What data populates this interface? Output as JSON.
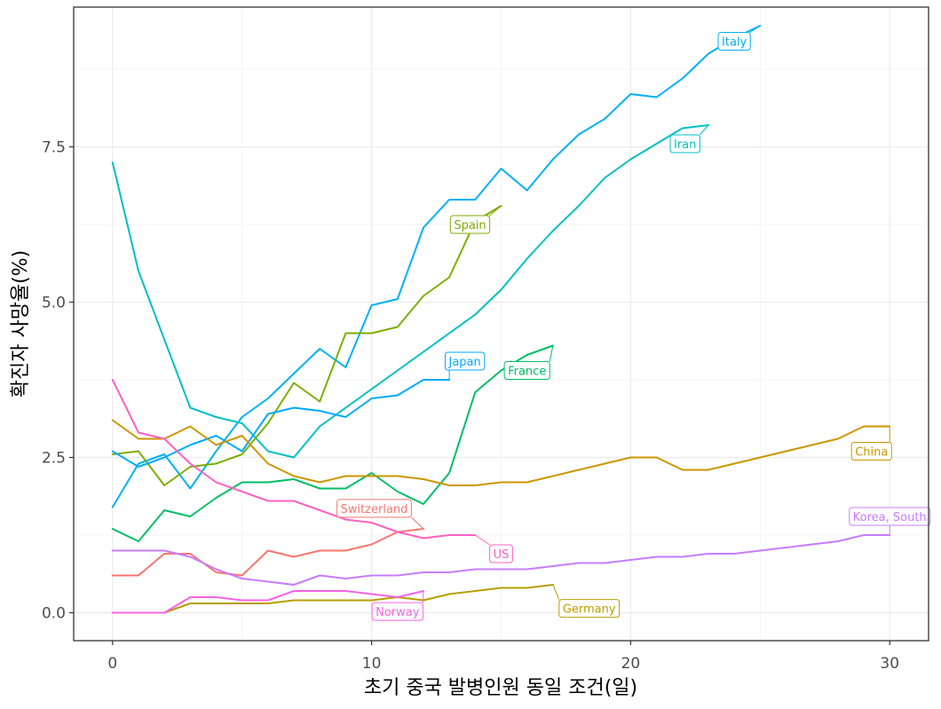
{
  "chart_data": {
    "type": "line",
    "title": "",
    "xlabel": "초기 중국 발병인원 동일 조건(일)",
    "ylabel": "확진자 사망율(%)",
    "xlim": [
      -1.5,
      31.5
    ],
    "ylim": [
      -0.45,
      9.75
    ],
    "x_ticks": [
      0,
      10,
      20,
      30
    ],
    "x_tick_labels": [
      "0",
      "10",
      "20",
      "30"
    ],
    "y_ticks": [
      0,
      2.5,
      5,
      7.5
    ],
    "y_tick_labels": [
      "0.0",
      "2.5",
      "5.0",
      "7.5"
    ],
    "grid": true,
    "legend": "none",
    "series": [
      {
        "name": "Italy",
        "color": "#00b0f6",
        "x": [
          0,
          1,
          2,
          3,
          4,
          5,
          6,
          7,
          8,
          9,
          10,
          11,
          12,
          13,
          14,
          15,
          16,
          17,
          18,
          19,
          20,
          21,
          22,
          23,
          24,
          25
        ],
        "y": [
          1.7,
          2.4,
          2.55,
          2.0,
          2.6,
          3.15,
          3.45,
          3.85,
          4.25,
          3.95,
          4.95,
          5.05,
          6.2,
          6.65,
          6.65,
          7.15,
          6.8,
          7.3,
          7.7,
          7.95,
          8.35,
          8.3,
          8.6,
          9.0,
          9.25,
          9.45
        ],
        "label_x": 24.0,
        "label_y": 9.2
      },
      {
        "name": "Iran",
        "color": "#00bfc4",
        "x": [
          0,
          1,
          2,
          3,
          4,
          5,
          6,
          7,
          8,
          9,
          10,
          11,
          12,
          13,
          14,
          15,
          16,
          17,
          18,
          19,
          20,
          21,
          22,
          23
        ],
        "y": [
          7.25,
          5.5,
          4.4,
          3.3,
          3.15,
          3.05,
          2.6,
          2.5,
          3.0,
          3.3,
          3.6,
          3.9,
          4.2,
          4.5,
          4.8,
          5.2,
          5.7,
          6.15,
          6.55,
          7.0,
          7.3,
          7.55,
          7.8,
          7.85
        ],
        "label_x": 22.1,
        "label_y": 7.55
      },
      {
        "name": "Spain",
        "color": "#7cae00",
        "x": [
          0,
          1,
          2,
          3,
          4,
          5,
          6,
          7,
          8,
          9,
          10,
          11,
          12,
          13,
          14,
          15
        ],
        "y": [
          2.55,
          2.6,
          2.05,
          2.35,
          2.4,
          2.55,
          3.05,
          3.7,
          3.4,
          4.5,
          4.5,
          4.6,
          5.1,
          5.4,
          6.3,
          6.55
        ],
        "label_x": 13.8,
        "label_y": 6.25
      },
      {
        "name": "Japan",
        "color": "#00a9ff",
        "x": [
          0,
          1,
          2,
          3,
          4,
          5,
          6,
          7,
          8,
          9,
          10,
          11,
          12,
          13
        ],
        "y": [
          2.6,
          2.35,
          2.5,
          2.7,
          2.85,
          2.6,
          3.2,
          3.3,
          3.25,
          3.15,
          3.45,
          3.5,
          3.75,
          3.75
        ],
        "label_x": 13.6,
        "label_y": 4.05
      },
      {
        "name": "France",
        "color": "#00be67",
        "x": [
          0,
          1,
          2,
          3,
          4,
          5,
          6,
          7,
          8,
          9,
          10,
          11,
          12,
          13,
          14,
          15,
          16,
          17
        ],
        "y": [
          1.35,
          1.15,
          1.65,
          1.55,
          1.85,
          2.1,
          2.1,
          2.15,
          2.0,
          2.0,
          2.25,
          1.95,
          1.75,
          2.25,
          3.55,
          3.9,
          4.15,
          4.3
        ],
        "label_x": 16.0,
        "label_y": 3.9
      },
      {
        "name": "China",
        "color": "#cd9600",
        "x": [
          0,
          1,
          2,
          3,
          4,
          5,
          6,
          7,
          8,
          9,
          10,
          11,
          12,
          13,
          14,
          15,
          16,
          17,
          18,
          19,
          20,
          21,
          22,
          23,
          24,
          25,
          26,
          27,
          28,
          29,
          30
        ],
        "y": [
          3.1,
          2.8,
          2.8,
          3.0,
          2.7,
          2.85,
          2.4,
          2.2,
          2.1,
          2.2,
          2.2,
          2.2,
          2.15,
          2.05,
          2.05,
          2.1,
          2.1,
          2.2,
          2.3,
          2.4,
          2.5,
          2.5,
          2.3,
          2.3,
          2.4,
          2.5,
          2.6,
          2.7,
          2.8,
          3.0,
          3.0
        ],
        "label_x": 29.3,
        "label_y": 2.6
      },
      {
        "name": "Switzerland",
        "color": "#f8766d",
        "x": [
          0,
          1,
          2,
          3,
          4,
          5,
          6,
          7,
          8,
          9,
          10,
          11,
          12
        ],
        "y": [
          0.6,
          0.6,
          0.95,
          0.95,
          0.65,
          0.6,
          1.0,
          0.9,
          1.0,
          1.0,
          1.1,
          1.3,
          1.35
        ],
        "label_x": 10.1,
        "label_y": 1.68
      },
      {
        "name": "US",
        "color": "#ff61c3",
        "x": [
          0,
          1,
          2,
          3,
          4,
          5,
          6,
          7,
          8,
          9,
          10,
          11,
          12,
          13,
          14
        ],
        "y": [
          3.75,
          2.9,
          2.8,
          2.4,
          2.1,
          1.95,
          1.8,
          1.8,
          1.65,
          1.5,
          1.45,
          1.3,
          1.2,
          1.25,
          1.25
        ],
        "label_x": 15.0,
        "label_y": 0.95
      },
      {
        "name": "Korea, South",
        "color": "#c77cff",
        "x": [
          0,
          1,
          2,
          3,
          4,
          5,
          6,
          7,
          8,
          9,
          10,
          11,
          12,
          13,
          14,
          15,
          16,
          17,
          18,
          19,
          20,
          21,
          22,
          23,
          24,
          25,
          26,
          27,
          28,
          29,
          30
        ],
        "y": [
          1.0,
          1.0,
          1.0,
          0.9,
          0.7,
          0.55,
          0.5,
          0.45,
          0.6,
          0.55,
          0.6,
          0.6,
          0.65,
          0.65,
          0.7,
          0.7,
          0.7,
          0.75,
          0.8,
          0.8,
          0.85,
          0.9,
          0.9,
          0.95,
          0.95,
          1.0,
          1.05,
          1.1,
          1.15,
          1.25,
          1.25
        ],
        "label_x": 30.0,
        "label_y": 1.55
      },
      {
        "name": "Germany",
        "color": "#b79f00",
        "x": [
          0,
          1,
          2,
          3,
          4,
          5,
          6,
          7,
          8,
          9,
          10,
          11,
          12,
          13,
          14,
          15,
          16,
          17
        ],
        "y": [
          0,
          0,
          0,
          0.15,
          0.15,
          0.15,
          0.15,
          0.2,
          0.2,
          0.2,
          0.2,
          0.25,
          0.2,
          0.3,
          0.35,
          0.4,
          0.4,
          0.45
        ],
        "label_x": 18.4,
        "label_y": 0.07
      },
      {
        "name": "Norway",
        "color": "#f564e3",
        "x": [
          0,
          1,
          2,
          3,
          4,
          5,
          6,
          7,
          8,
          9,
          10,
          11,
          12
        ],
        "y": [
          0,
          0,
          0,
          0.25,
          0.25,
          0.2,
          0.2,
          0.35,
          0.35,
          0.35,
          0.3,
          0.25,
          0.35
        ],
        "label_x": 11.0,
        "label_y": 0.02
      }
    ]
  }
}
